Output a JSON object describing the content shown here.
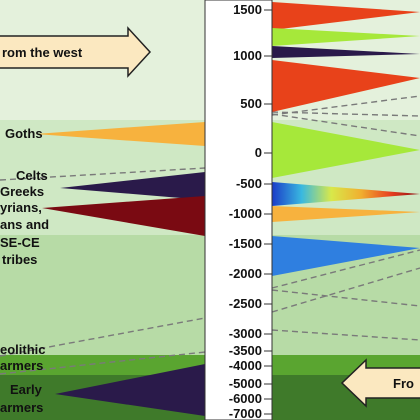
{
  "arrows": {
    "west_label": "rom the west",
    "east_label": "Fro"
  },
  "labels": {
    "goths": "Goths",
    "celts": "Celts",
    "greeks": "Greeks",
    "illyrians": "yrians,",
    "ans_and": "ans and",
    "se_ce": "SE-CE",
    "tribes": "tribes",
    "neolithic": "eolithic",
    "farmers_1": "armers",
    "early": "Early",
    "farmers_2": "armers"
  },
  "timeline": {
    "ticks": [
      "1500",
      "1000",
      "500",
      "0",
      "-500",
      "-1000",
      "-1500",
      "-2000",
      "-2500",
      "-3000",
      "-3500",
      "-4000",
      "-5000",
      "-6000",
      "-7000"
    ]
  },
  "colors": {
    "band_light": "#cfe8c4",
    "band_mid": "#b9dcab",
    "band_neolithic": "#5aa530",
    "band_early": "#3f7a2a",
    "arrow_fill": "#fbe8c0",
    "orange": "#f7b23e",
    "dark_purple": "#2a1a4a",
    "dark_red": "#7a0a12",
    "red_orange": "#e8421a",
    "lime": "#a6e83a",
    "blue": "#2f7fe0"
  }
}
